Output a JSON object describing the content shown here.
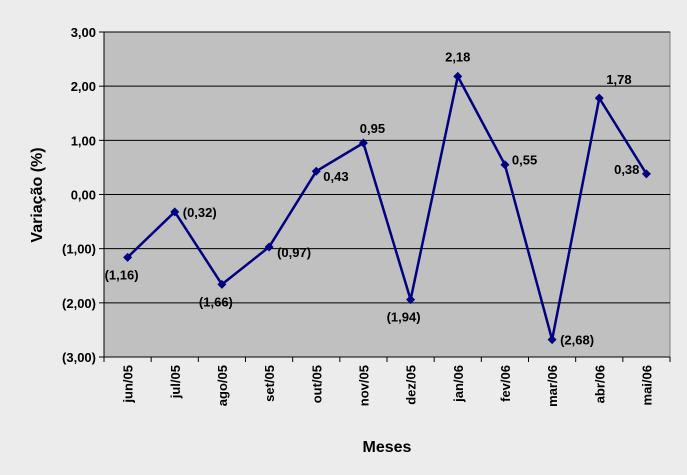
{
  "chart_data": {
    "type": "line",
    "xlabel": "Meses",
    "ylabel": "Variação (%)",
    "categories": [
      "jun/05",
      "jul/05",
      "ago/05",
      "set/05",
      "out/05",
      "nov/05",
      "dez/05",
      "jan/06",
      "fev/06",
      "mar/06",
      "abr/06",
      "mai/06"
    ],
    "values": [
      -1.16,
      -0.32,
      -1.66,
      -0.97,
      0.43,
      0.95,
      -1.94,
      2.18,
      0.55,
      -2.68,
      1.78,
      0.38
    ],
    "data_labels": [
      "(1,16)",
      "(0,32)",
      "(1,66)",
      "(0,97)",
      "0,43",
      "0,95",
      "(1,94)",
      "2,18",
      "0,55",
      "(2,68)",
      "1,78",
      "0,38"
    ],
    "ylim": [
      -3,
      3
    ],
    "y_ticks": [
      3,
      2,
      1,
      0,
      -1,
      -2,
      -3
    ],
    "y_tick_labels": [
      "3,00",
      "2,00",
      "1,00",
      "0,00",
      "(1,00)",
      "(2,00)",
      "(3,00)"
    ],
    "grid": true,
    "colors": {
      "line": "#000080",
      "plot_background": "#c0c0c0",
      "gridline": "#000000",
      "page_background": "#ececec"
    }
  }
}
